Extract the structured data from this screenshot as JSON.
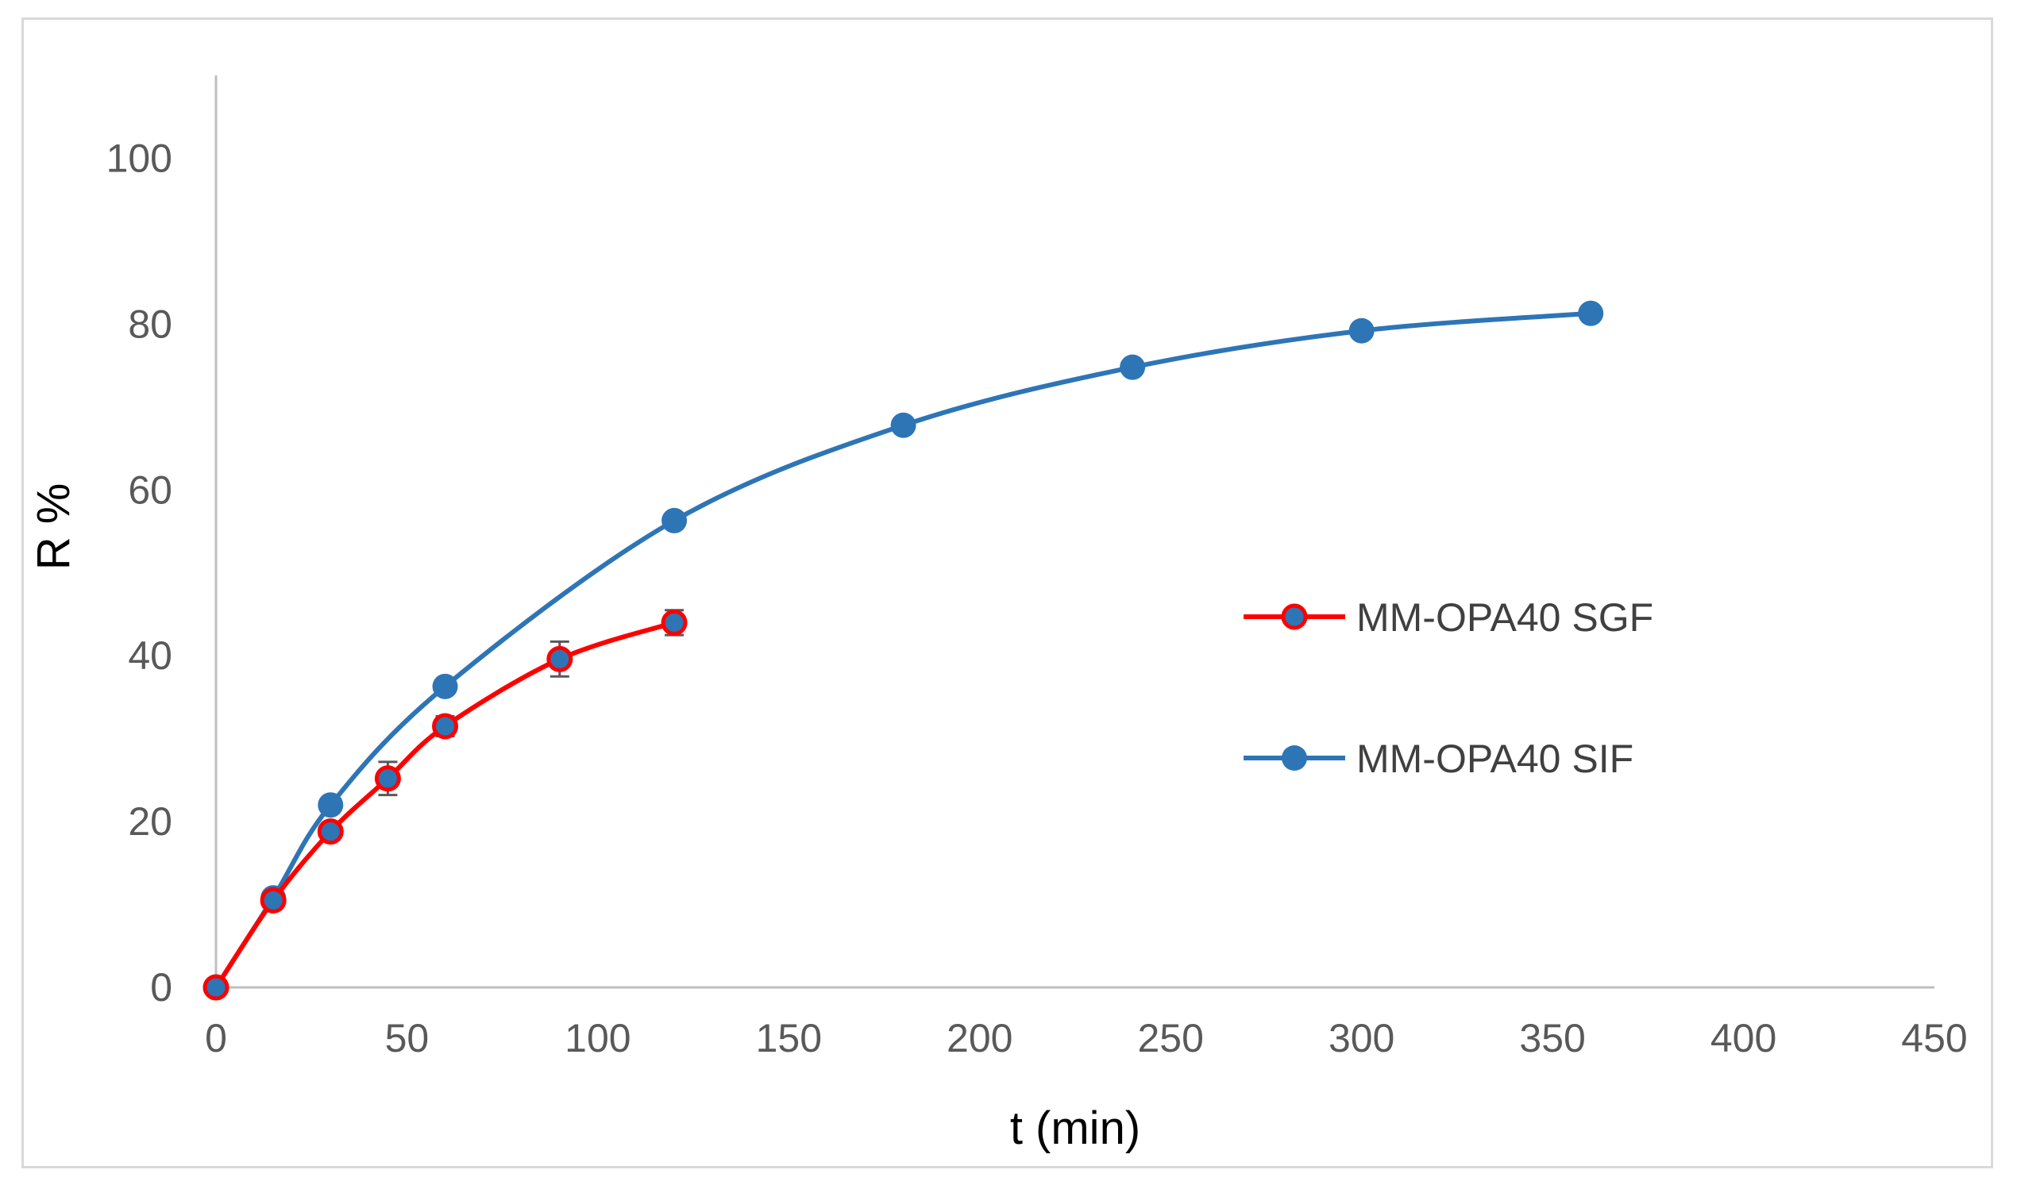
{
  "chart_data": {
    "type": "line",
    "title": "",
    "xlabel": "t (min)",
    "ylabel": "R %",
    "xlim": [
      0,
      450
    ],
    "ylim": [
      0,
      110
    ],
    "xticks": [
      0,
      50,
      100,
      150,
      200,
      250,
      300,
      350,
      400,
      450
    ],
    "yticks": [
      0,
      20,
      40,
      60,
      80,
      100
    ],
    "grid": false,
    "legend_position": "right-center",
    "series": [
      {
        "name": "MM-OPA40 SGF",
        "color": "#ff0000",
        "marker_color": "#2e75b6",
        "x": [
          0,
          15,
          30,
          45,
          60,
          90,
          120
        ],
        "y": [
          0,
          10.5,
          18.8,
          25.2,
          31.5,
          39.6,
          44
        ],
        "error": [
          0,
          0.8,
          1,
          2,
          1.2,
          2.1,
          1.5
        ]
      },
      {
        "name": "MM-OPA40 SIF",
        "color": "#2e75b6",
        "marker_color": "#2e75b6",
        "x": [
          0,
          15,
          30,
          60,
          120,
          180,
          240,
          300,
          360
        ],
        "y": [
          0,
          10.8,
          22,
          36.3,
          56.3,
          67.8,
          74.8,
          79.2,
          81.3
        ],
        "error": [
          0,
          0.5,
          0.6,
          0.6,
          0.8,
          0.6,
          0.6,
          0.5,
          0.5
        ]
      }
    ]
  }
}
